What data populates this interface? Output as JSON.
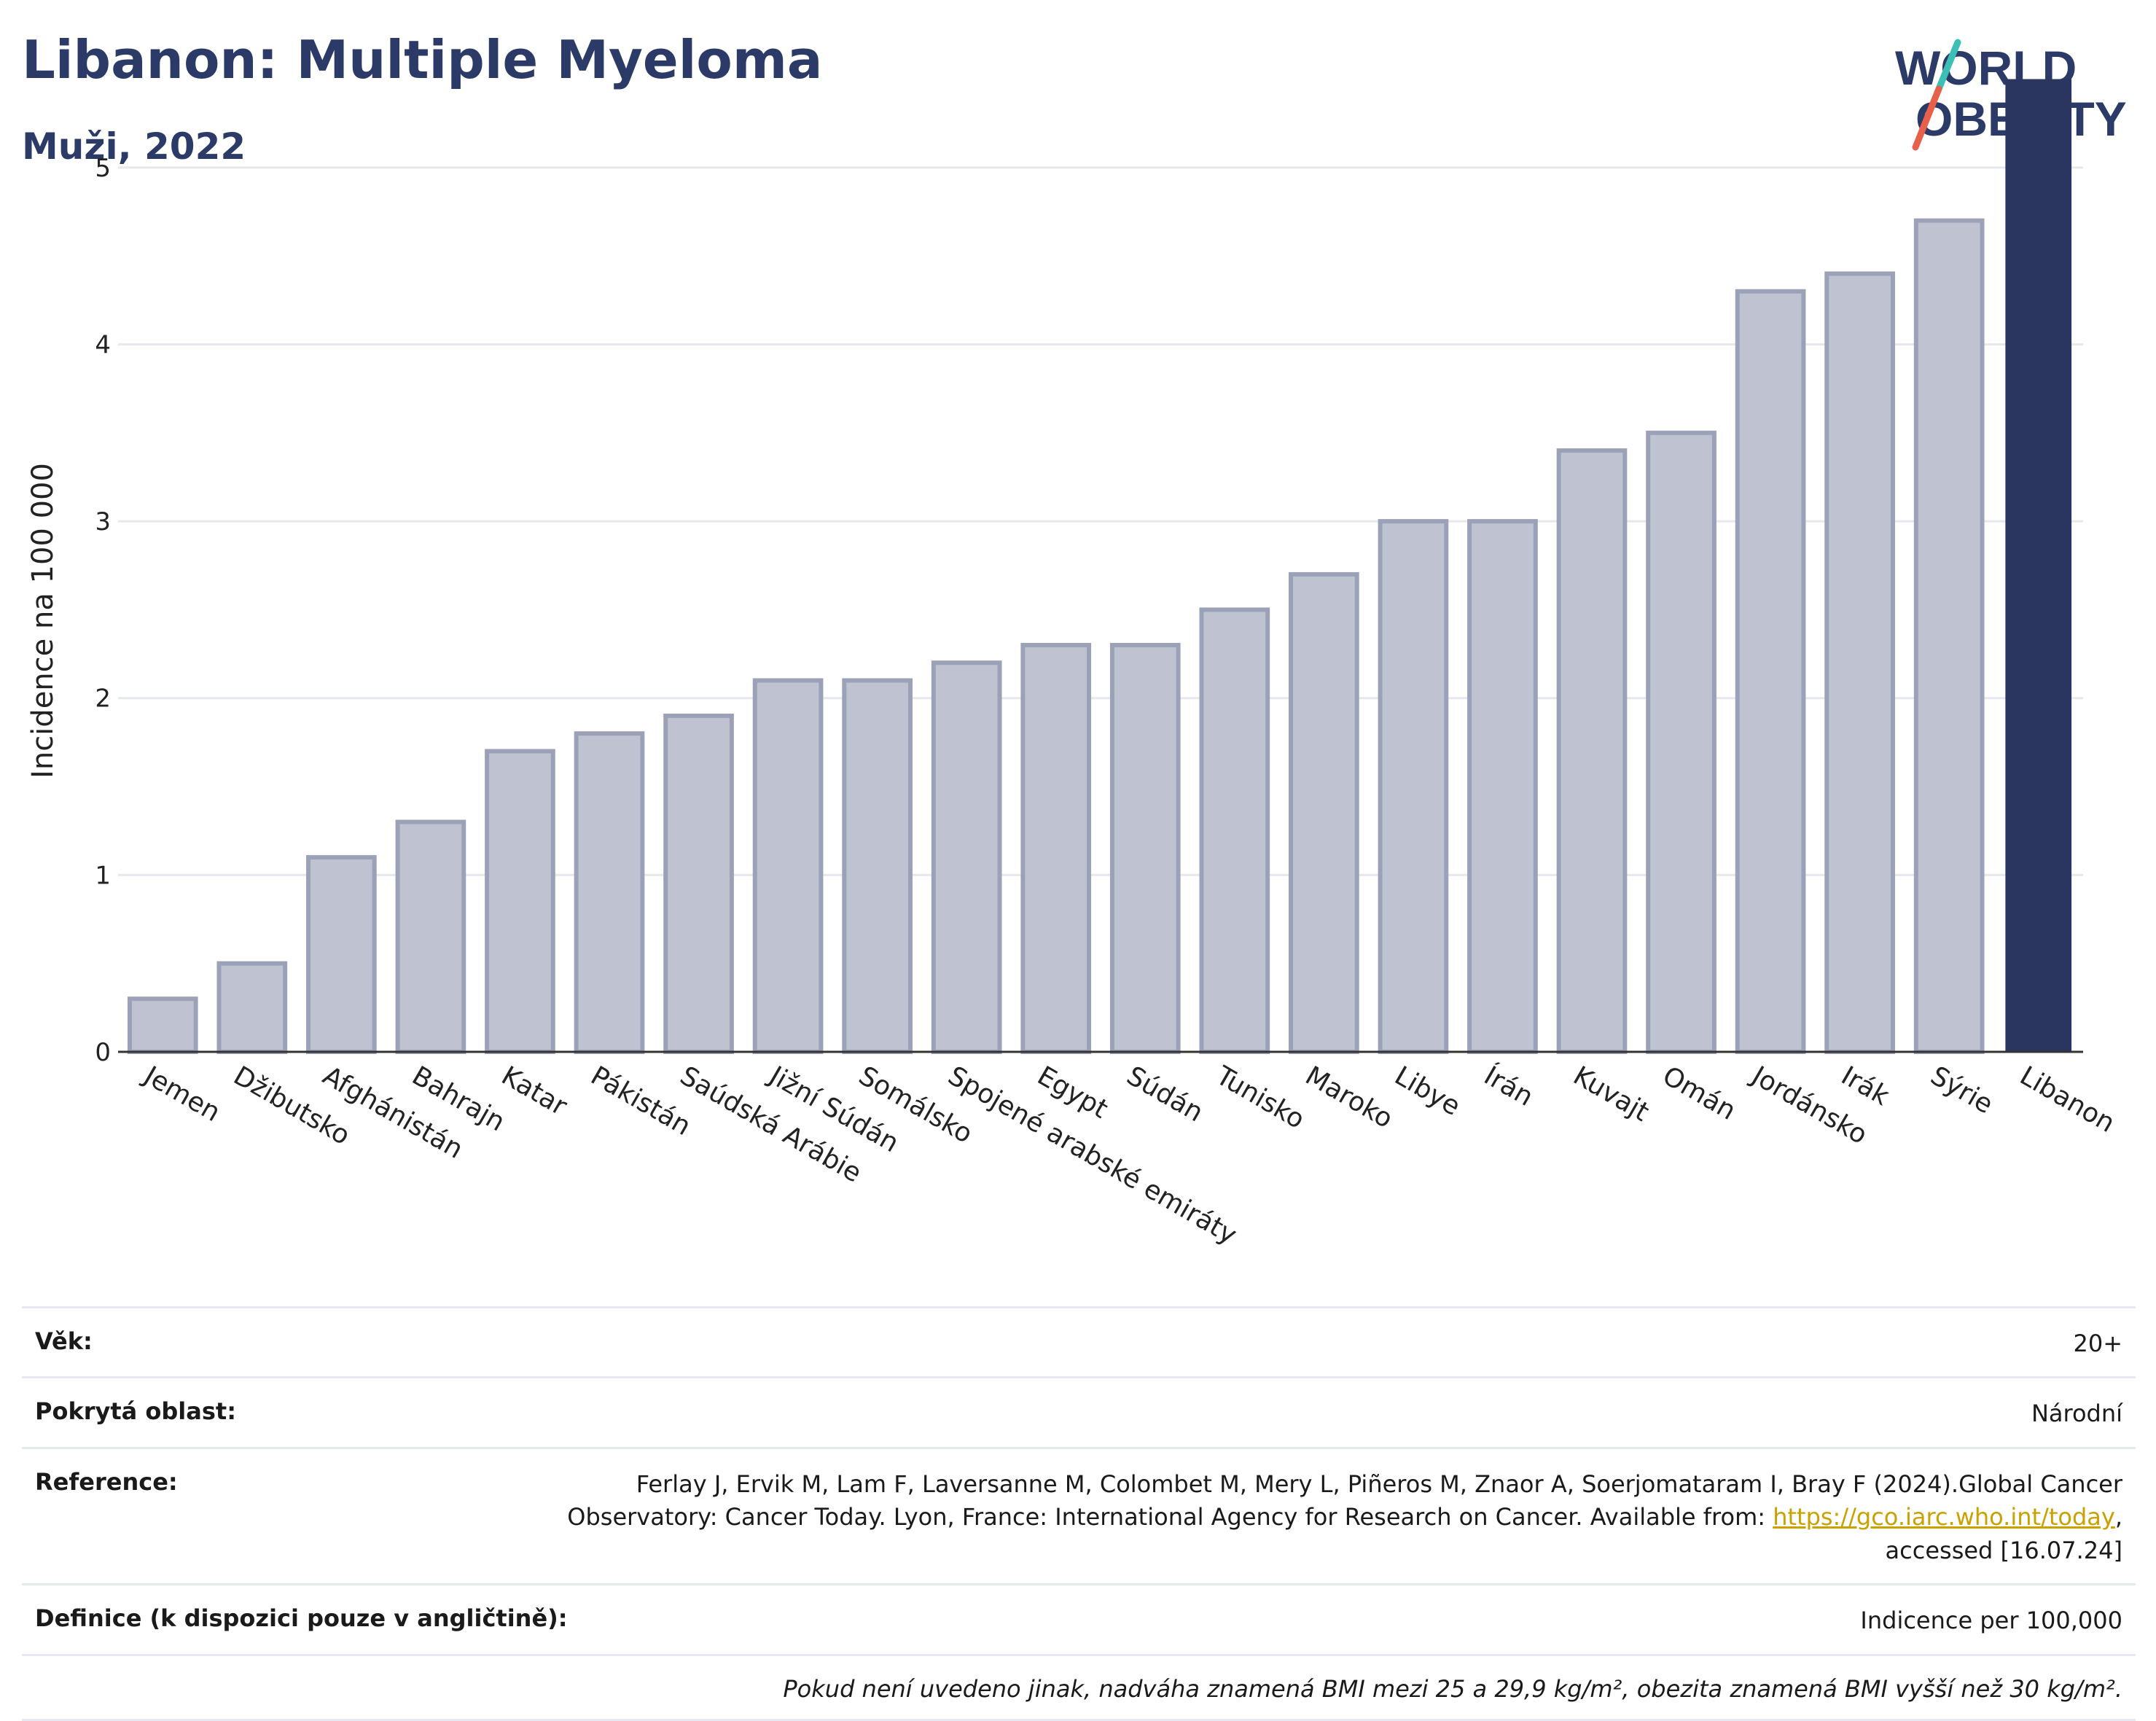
{
  "header": {
    "title": "Libanon: Multiple Myeloma",
    "subtitle": "Muži, 2022"
  },
  "logo": {
    "line1": "WORLD",
    "line2": "OBESITY",
    "colors": {
      "text": "#2b3a67",
      "slash_teal": "#3cbfb4",
      "slash_red": "#e8604c"
    }
  },
  "chart_data": {
    "type": "bar",
    "ylabel": "Incidence na 100 000",
    "xlabel": "",
    "ylim": [
      0,
      5.7
    ],
    "yticks": [
      0,
      1,
      2,
      3,
      4,
      5
    ],
    "grid": true,
    "highlight": "Libanon",
    "colors": {
      "bar": "#bfc3d1",
      "bar_stroke": "#9ba2b8",
      "highlight": "#2b3660",
      "grid": "#e6e8ee"
    },
    "categories": [
      "Jemen",
      "Džibutsko",
      "Afghánistán",
      "Bahrajn",
      "Katar",
      "Pákistán",
      "Saúdská Arábie",
      "Jižní Súdán",
      "Somálsko",
      "Spojené arabské emiráty",
      "Egypt",
      "Súdán",
      "Tunisko",
      "Maroko",
      "Libye",
      "Írán",
      "Kuvajt",
      "Omán",
      "Jordánsko",
      "Irák",
      "Sýrie",
      "Libanon"
    ],
    "values": [
      0.3,
      0.5,
      1.1,
      1.3,
      1.7,
      1.8,
      1.9,
      2.1,
      2.1,
      2.2,
      2.3,
      2.3,
      2.5,
      2.7,
      3.0,
      3.0,
      3.4,
      3.5,
      4.3,
      4.4,
      4.7,
      5.5
    ]
  },
  "info": {
    "age": {
      "label": "Věk:",
      "value": "20+"
    },
    "area": {
      "label": "Pokrytá oblast:",
      "value": "Národní"
    },
    "reference": {
      "label": "Reference:",
      "text_before": "Ferlay J, Ervik M, Lam F, Laversanne M, Colombet M, Mery L, Piñeros M, Znaor A, Soerjomataram I, Bray F (2024).Global Cancer Observatory: Cancer Today. Lyon, France: International Agency for Research on Cancer. Available from: ",
      "link": "https://gco.iarc.who.int/today",
      "text_after": ", accessed [16.07.24]"
    },
    "definition": {
      "label": "Definice (k dispozici pouze v angličtině):",
      "value": "Indicence per 100,000"
    },
    "note": "Pokud není uvedeno jinak, nadváha znamená BMI mezi 25 a 29,9 kg/m², obezita znamená BMI vyšší než 30 kg/m²."
  }
}
